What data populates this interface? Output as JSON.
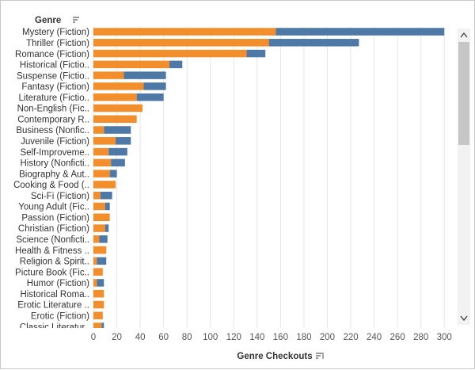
{
  "header": {
    "row_header": "Genre",
    "sort_icon": "sort-descending-icon"
  },
  "scrollbar": {
    "up_icon": "chevron-up-icon",
    "down_icon": "chevron-down-icon"
  },
  "colors": {
    "fiction": "#F28E2B",
    "nonfiction": "#4E79A7",
    "grid": "#e6e6e6"
  },
  "chart_data": {
    "type": "bar",
    "orientation": "horizontal",
    "stacked": true,
    "xlabel": "Genre Checkouts",
    "ylabel": "Genre",
    "xlim": [
      0,
      310
    ],
    "xticks": [
      0,
      20,
      40,
      60,
      80,
      100,
      120,
      140,
      160,
      180,
      200,
      220,
      240,
      260,
      280,
      300
    ],
    "grid": true,
    "legend": "none",
    "categories": [
      "Mystery (Fiction)",
      "Thriller (Fiction)",
      "Romance (Fiction)",
      "Historical (Fictio..",
      "Suspense (Fictio..",
      "Fantasy (Fiction)",
      "Literature (Fictio..",
      "Non-English (Fic..",
      "Contemporary R..",
      "Business (Nonfic..",
      "Juvenile (Fiction)",
      "Self-Improveme..",
      "History (Nonficti..",
      "Biography & Aut..",
      "Cooking & Food (..",
      "Sci-Fi (Fiction)",
      "Young Adult (Fic..",
      "Passion (Fiction)",
      "Christian (Fiction)",
      "Science (Nonficti..",
      "Health & Fitness ..",
      "Religion & Spirit..",
      "Picture Book (Fic..",
      "Humor (Fiction)",
      "Historical Roma..",
      "Erotic Literature ..",
      "Erotic (Fiction)",
      "Classic Literatur.."
    ],
    "series": [
      {
        "values": [
          156,
          150,
          131,
          65,
          26,
          43,
          37,
          42,
          37,
          9,
          19,
          13,
          15,
          14,
          19,
          6,
          10,
          14,
          10,
          5,
          11,
          3,
          8,
          3,
          9,
          9,
          8,
          7
        ]
      },
      {
        "values": [
          144,
          77,
          16,
          11,
          36,
          19,
          23,
          0,
          0,
          23,
          13,
          16,
          12,
          6,
          0,
          10,
          4,
          0,
          3,
          7,
          0,
          8,
          0,
          6,
          0,
          0,
          0,
          2
        ]
      }
    ]
  }
}
